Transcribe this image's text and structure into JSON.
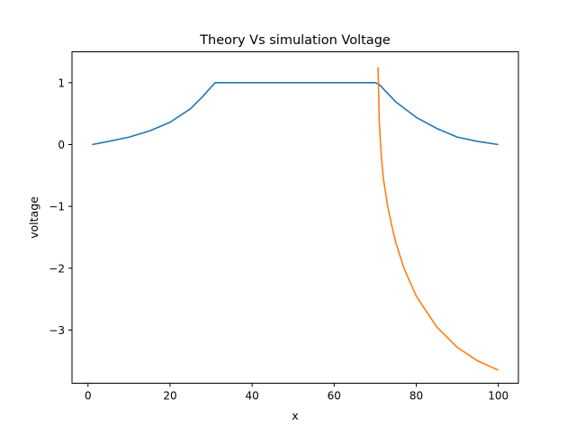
{
  "chart_data": {
    "type": "line",
    "title": "Theory Vs simulation Voltage",
    "xlabel": "x",
    "ylabel": "voltage",
    "xlim": [
      -3.9,
      104.9
    ],
    "ylim": [
      -3.86,
      1.5
    ],
    "xticks": [
      0,
      20,
      40,
      60,
      80,
      100
    ],
    "xtick_labels": [
      "0",
      "20",
      "40",
      "60",
      "80",
      "100"
    ],
    "yticks": [
      1,
      0,
      -1,
      -2,
      -3
    ],
    "ytick_labels": [
      "1",
      "0",
      "−1",
      "−2",
      "−3"
    ],
    "grid": false,
    "series": [
      {
        "color": "#1f77b4",
        "x": [
          1,
          5,
          10,
          15,
          20,
          25,
          28,
          30,
          31,
          40,
          50,
          60,
          70,
          71,
          75,
          80,
          85,
          90,
          95,
          100
        ],
        "y": [
          0,
          0.05,
          0.12,
          0.22,
          0.36,
          0.58,
          0.78,
          0.93,
          1.0,
          1.0,
          1.0,
          1.0,
          1.0,
          0.97,
          0.69,
          0.44,
          0.26,
          0.12,
          0.05,
          0.0
        ]
      },
      {
        "color": "#ff7f0e",
        "x": [
          70.7,
          71,
          71.5,
          72,
          73,
          74,
          75,
          77,
          80,
          85,
          90,
          95,
          100
        ],
        "y": [
          1.25,
          0.35,
          -0.2,
          -0.55,
          -0.98,
          -1.3,
          -1.58,
          -2.0,
          -2.45,
          -2.95,
          -3.28,
          -3.5,
          -3.65
        ]
      }
    ]
  }
}
